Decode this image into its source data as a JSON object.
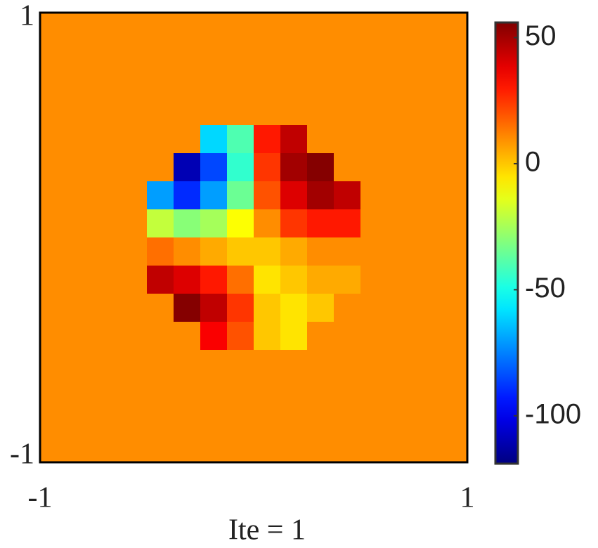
{
  "chart_data": {
    "type": "heatmap",
    "xlabel": "Ite = 1",
    "xlim": [
      -1,
      1
    ],
    "ylim": [
      -1,
      1
    ],
    "xticks": [
      -1,
      1
    ],
    "yticks": [
      -1,
      1
    ],
    "x": [
      -0.9375,
      -0.8125,
      -0.6875,
      -0.5625,
      -0.4375,
      -0.3125,
      -0.1875,
      -0.0625,
      0.0625,
      0.1875,
      0.3125,
      0.4375,
      0.5625,
      0.6875,
      0.8125,
      0.9375
    ],
    "y": [
      0.9375,
      0.8125,
      0.6875,
      0.5625,
      0.4375,
      0.3125,
      0.1875,
      0.0625,
      -0.0625,
      -0.1875,
      -0.3125,
      -0.4375,
      -0.5625,
      -0.6875,
      -0.8125,
      -0.9375
    ],
    "values": [
      [
        10,
        10,
        10,
        10,
        10,
        10,
        10,
        10,
        10,
        10,
        10,
        10,
        10,
        10,
        10,
        10
      ],
      [
        10,
        10,
        10,
        10,
        10,
        10,
        10,
        10,
        10,
        10,
        10,
        10,
        10,
        10,
        10,
        10
      ],
      [
        10,
        10,
        10,
        10,
        10,
        10,
        10,
        10,
        10,
        10,
        10,
        10,
        10,
        10,
        10,
        10
      ],
      [
        10,
        10,
        10,
        10,
        10,
        10,
        10,
        10,
        10,
        10,
        10,
        10,
        10,
        10,
        10,
        10
      ],
      [
        10,
        10,
        10,
        10,
        10,
        10,
        -60,
        -40,
        30,
        45,
        10,
        10,
        10,
        10,
        10,
        10
      ],
      [
        10,
        10,
        10,
        10,
        10,
        -110,
        -85,
        -45,
        25,
        50,
        55,
        10,
        10,
        10,
        10,
        10
      ],
      [
        10,
        10,
        10,
        10,
        -70,
        -90,
        -70,
        -35,
        20,
        40,
        50,
        45,
        10,
        10,
        10,
        10
      ],
      [
        10,
        10,
        10,
        10,
        -20,
        -30,
        -25,
        -10,
        10,
        25,
        30,
        30,
        10,
        10,
        10,
        10
      ],
      [
        10,
        10,
        10,
        10,
        15,
        10,
        5,
        0,
        0,
        5,
        10,
        10,
        10,
        10,
        10,
        10
      ],
      [
        10,
        10,
        10,
        10,
        45,
        40,
        30,
        15,
        -5,
        0,
        5,
        5,
        10,
        10,
        10,
        10
      ],
      [
        10,
        10,
        10,
        10,
        10,
        55,
        45,
        25,
        0,
        -5,
        0,
        10,
        10,
        10,
        10,
        10
      ],
      [
        10,
        10,
        10,
        10,
        10,
        10,
        35,
        20,
        0,
        -5,
        10,
        10,
        10,
        10,
        10,
        10
      ],
      [
        10,
        10,
        10,
        10,
        10,
        10,
        10,
        10,
        10,
        10,
        10,
        10,
        10,
        10,
        10,
        10
      ],
      [
        10,
        10,
        10,
        10,
        10,
        10,
        10,
        10,
        10,
        10,
        10,
        10,
        10,
        10,
        10,
        10
      ],
      [
        10,
        10,
        10,
        10,
        10,
        10,
        10,
        10,
        10,
        10,
        10,
        10,
        10,
        10,
        10,
        10
      ],
      [
        10,
        10,
        10,
        10,
        10,
        10,
        10,
        10,
        10,
        10,
        10,
        10,
        10,
        10,
        10,
        10
      ]
    ],
    "colormap": "jet",
    "colorbar": {
      "clim": [
        -119,
        56
      ],
      "ticks": [
        -100,
        -50,
        0,
        50
      ]
    }
  }
}
